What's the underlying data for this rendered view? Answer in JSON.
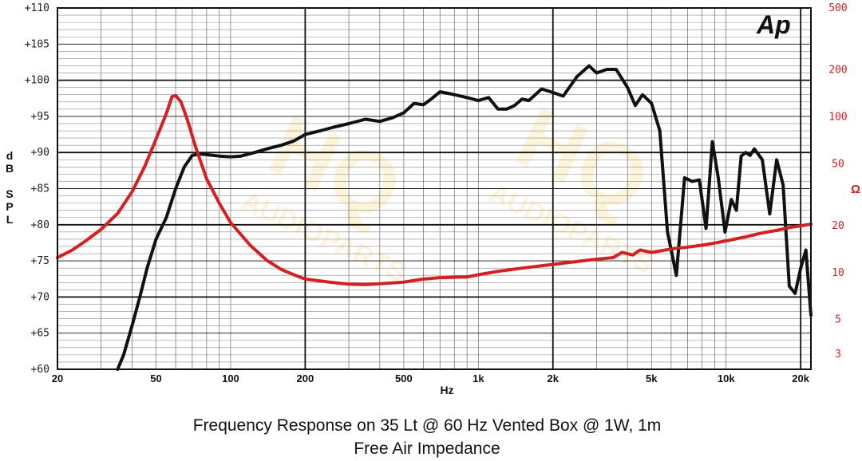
{
  "logo_text": "Ap",
  "watermark": {
    "main": "HQ",
    "sub": "AUDIOPARTS"
  },
  "chart_data": {
    "type": "line",
    "caption_line1": "Frequency Response on 35 Lt @ 60 Hz Vented Box @ 1W, 1m",
    "caption_line2": "Free Air Impedance",
    "xlabel": "Hz",
    "ylabel_left": [
      "d",
      "B",
      "",
      "S",
      "P",
      "L"
    ],
    "ylabel_right": "Ω",
    "x_scale": "log",
    "xlim": [
      20,
      22000
    ],
    "x_ticks": [
      {
        "v": 20,
        "label": "20"
      },
      {
        "v": 50,
        "label": "50"
      },
      {
        "v": 100,
        "label": "100"
      },
      {
        "v": 200,
        "label": "200"
      },
      {
        "v": 500,
        "label": "500"
      },
      {
        "v": 1000,
        "label": "1k"
      },
      {
        "v": 2000,
        "label": "2k"
      },
      {
        "v": 5000,
        "label": "5k"
      },
      {
        "v": 10000,
        "label": "10k"
      },
      {
        "v": 20000,
        "label": "20k"
      }
    ],
    "ylim_left": [
      60,
      110
    ],
    "y_ticks_left": [
      "+60",
      "+65",
      "+70",
      "+75",
      "+80",
      "+85",
      "+90",
      "+95",
      "+100",
      "+105",
      "+110"
    ],
    "y_scale_right": "log",
    "ylim_right": [
      2.4,
      500
    ],
    "y_ticks_right": [
      {
        "v": 3,
        "label": "3"
      },
      {
        "v": 5,
        "label": "5"
      },
      {
        "v": 10,
        "label": "10"
      },
      {
        "v": 20,
        "label": "20"
      },
      {
        "v": 50,
        "label": "50"
      },
      {
        "v": 100,
        "label": "100"
      },
      {
        "v": 200,
        "label": "200"
      },
      {
        "v": 500,
        "label": "500"
      }
    ],
    "grid": true,
    "series": [
      {
        "color": "#111111",
        "axis": "left",
        "points": [
          [
            35,
            60
          ],
          [
            37,
            62
          ],
          [
            40,
            66
          ],
          [
            43,
            70
          ],
          [
            46,
            74
          ],
          [
            50,
            78
          ],
          [
            55,
            81
          ],
          [
            60,
            85
          ],
          [
            65,
            88
          ],
          [
            70,
            89.6
          ],
          [
            75,
            89.8
          ],
          [
            80,
            89.7
          ],
          [
            90,
            89.5
          ],
          [
            100,
            89.4
          ],
          [
            110,
            89.5
          ],
          [
            125,
            90
          ],
          [
            140,
            90.5
          ],
          [
            160,
            91
          ],
          [
            180,
            91.6
          ],
          [
            200,
            92.5
          ],
          [
            230,
            93
          ],
          [
            260,
            93.5
          ],
          [
            300,
            94
          ],
          [
            350,
            94.6
          ],
          [
            400,
            94.3
          ],
          [
            450,
            94.8
          ],
          [
            500,
            95.5
          ],
          [
            550,
            96.8
          ],
          [
            600,
            96.6
          ],
          [
            650,
            97.5
          ],
          [
            700,
            98.4
          ],
          [
            750,
            98.2
          ],
          [
            800,
            98
          ],
          [
            900,
            97.6
          ],
          [
            1000,
            97.2
          ],
          [
            1100,
            97.6
          ],
          [
            1200,
            96
          ],
          [
            1300,
            96
          ],
          [
            1400,
            96.5
          ],
          [
            1500,
            97.4
          ],
          [
            1600,
            97.2
          ],
          [
            1800,
            98.8
          ],
          [
            2000,
            98.3
          ],
          [
            2200,
            97.8
          ],
          [
            2500,
            100.5
          ],
          [
            2800,
            102
          ],
          [
            3000,
            101
          ],
          [
            3300,
            101.5
          ],
          [
            3600,
            101.5
          ],
          [
            4000,
            99
          ],
          [
            4300,
            96.5
          ],
          [
            4600,
            98
          ],
          [
            5000,
            96.8
          ],
          [
            5400,
            93
          ],
          [
            5800,
            79
          ],
          [
            6300,
            73
          ],
          [
            6800,
            86.5
          ],
          [
            7300,
            86
          ],
          [
            7800,
            86.2
          ],
          [
            8300,
            79.5
          ],
          [
            8800,
            91.5
          ],
          [
            9300,
            86.5
          ],
          [
            9900,
            79
          ],
          [
            10500,
            83.5
          ],
          [
            11000,
            82
          ],
          [
            11500,
            89.5
          ],
          [
            12000,
            90
          ],
          [
            12500,
            89.6
          ],
          [
            13000,
            90.5
          ],
          [
            14000,
            89
          ],
          [
            15000,
            81.5
          ],
          [
            16000,
            89
          ],
          [
            17000,
            85.5
          ],
          [
            18000,
            71.5
          ],
          [
            19000,
            70.5
          ],
          [
            20000,
            74
          ],
          [
            21000,
            76.5
          ],
          [
            22000,
            67.5
          ]
        ]
      },
      {
        "color": "#d42020",
        "axis": "right",
        "points": [
          [
            20,
            12.5
          ],
          [
            23,
            14
          ],
          [
            26,
            16
          ],
          [
            30,
            19
          ],
          [
            35,
            24
          ],
          [
            40,
            33
          ],
          [
            45,
            48
          ],
          [
            50,
            72
          ],
          [
            55,
            105
          ],
          [
            58,
            135
          ],
          [
            60,
            137
          ],
          [
            63,
            125
          ],
          [
            67,
            95
          ],
          [
            72,
            65
          ],
          [
            80,
            40
          ],
          [
            90,
            28
          ],
          [
            100,
            21
          ],
          [
            120,
            15
          ],
          [
            140,
            12
          ],
          [
            160,
            10.5
          ],
          [
            180,
            9.7
          ],
          [
            200,
            9.1
          ],
          [
            250,
            8.7
          ],
          [
            300,
            8.45
          ],
          [
            350,
            8.4
          ],
          [
            400,
            8.5
          ],
          [
            500,
            8.7
          ],
          [
            600,
            9.1
          ],
          [
            700,
            9.3
          ],
          [
            800,
            9.35
          ],
          [
            900,
            9.4
          ],
          [
            1000,
            9.7
          ],
          [
            1200,
            10.2
          ],
          [
            1500,
            10.7
          ],
          [
            2000,
            11.3
          ],
          [
            2500,
            11.8
          ],
          [
            3000,
            12.2
          ],
          [
            3500,
            12.5
          ],
          [
            3800,
            13.5
          ],
          [
            4200,
            13
          ],
          [
            4500,
            14
          ],
          [
            5000,
            13.5
          ],
          [
            6000,
            14.2
          ],
          [
            7000,
            14.6
          ],
          [
            8000,
            15
          ],
          [
            9000,
            15.5
          ],
          [
            10000,
            16
          ],
          [
            12000,
            17
          ],
          [
            14000,
            18
          ],
          [
            16000,
            18.7
          ],
          [
            18000,
            19.5
          ],
          [
            20000,
            20
          ],
          [
            22000,
            20.5
          ]
        ]
      }
    ]
  }
}
